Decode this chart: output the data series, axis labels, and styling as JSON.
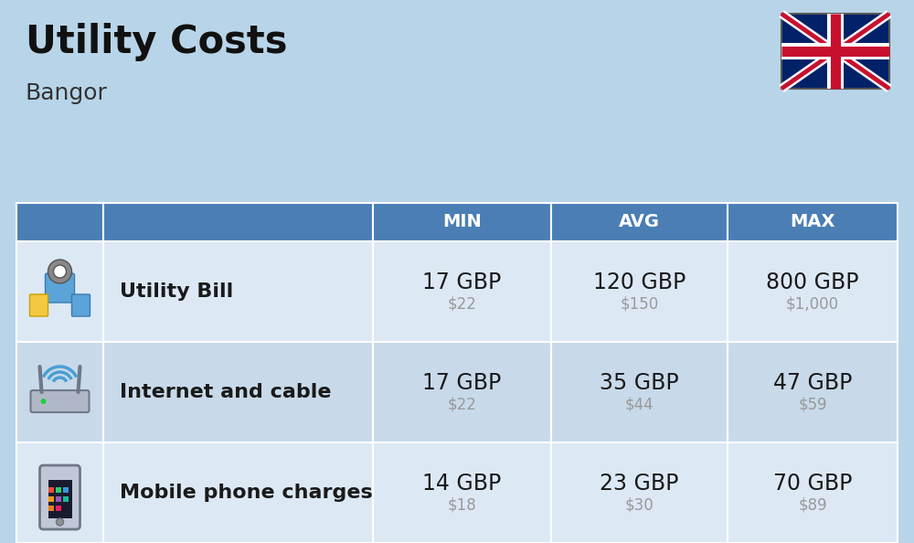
{
  "title": "Utility Costs",
  "subtitle": "Bangor",
  "background_color": "#b8d4e8",
  "table_header_color": "#4a7eb5",
  "table_row_colors": [
    "#dce9f5",
    "#c8daea",
    "#dce9f5"
  ],
  "header_text_color": "#ffffff",
  "cell_text_color": "#1a1a1a",
  "usd_text_color": "#999999",
  "col_headers": [
    "",
    "",
    "MIN",
    "AVG",
    "MAX"
  ],
  "rows": [
    {
      "label": "Utility Bill",
      "min_gbp": "17 GBP",
      "min_usd": "$22",
      "avg_gbp": "120 GBP",
      "avg_usd": "$150",
      "max_gbp": "800 GBP",
      "max_usd": "$1,000",
      "icon": "utility"
    },
    {
      "label": "Internet and cable",
      "min_gbp": "17 GBP",
      "min_usd": "$22",
      "avg_gbp": "35 GBP",
      "avg_usd": "$44",
      "max_gbp": "47 GBP",
      "max_usd": "$59",
      "icon": "internet"
    },
    {
      "label": "Mobile phone charges",
      "min_gbp": "14 GBP",
      "min_usd": "$18",
      "avg_gbp": "23 GBP",
      "avg_usd": "$30",
      "max_gbp": "70 GBP",
      "max_usd": "$89",
      "icon": "mobile"
    }
  ],
  "title_fontsize": 30,
  "subtitle_fontsize": 18,
  "header_fontsize": 14,
  "cell_gbp_fontsize": 17,
  "cell_usd_fontsize": 12,
  "label_fontsize": 16,
  "fig_width": 10.0,
  "fig_height": 5.94,
  "dpi": 100
}
